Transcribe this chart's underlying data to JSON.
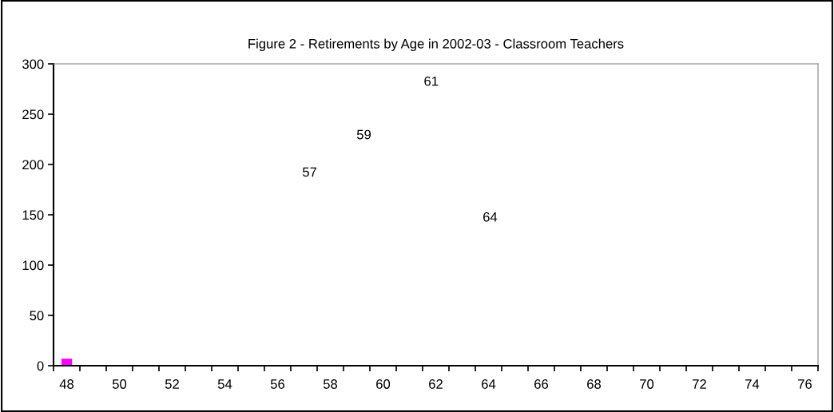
{
  "chart_data": {
    "type": "bar",
    "title": "Figure 2 - Retirements by Age in 2002-03 - Classroom Teachers",
    "x": [
      48
    ],
    "series": [
      {
        "color": "#ff00ff",
        "values": [
          7
        ]
      }
    ],
    "xlim": [
      47.5,
      76.5
    ],
    "xticks": [
      48,
      50,
      52,
      54,
      56,
      58,
      60,
      62,
      64,
      66,
      68,
      70,
      72,
      74,
      76,
      {
        "value": 47.5,
        "label": null
      },
      {
        "value": 48.5,
        "label": null
      },
      {
        "value": 49.5,
        "label": null
      },
      {
        "value": 50.5,
        "label": null
      },
      {
        "value": 51.5,
        "label": null
      },
      {
        "value": 52.5,
        "label": null
      },
      {
        "value": 53.5,
        "label": null
      },
      {
        "value": 54.5,
        "label": null
      },
      {
        "value": 55.5,
        "label": null
      },
      {
        "value": 56.5,
        "label": null
      },
      {
        "value": 57.5,
        "label": null
      },
      {
        "value": 58.5,
        "label": null
      },
      {
        "value": 59.5,
        "label": null
      },
      {
        "value": 60.5,
        "label": null
      },
      {
        "value": 61.5,
        "label": null
      },
      {
        "value": 62.5,
        "label": null
      },
      {
        "value": 63.5,
        "label": null
      },
      {
        "value": 64.5,
        "label": null
      },
      {
        "value": 65.5,
        "label": null
      },
      {
        "value": 66.5,
        "label": null
      },
      {
        "value": 67.5,
        "label": null
      },
      {
        "value": 68.5,
        "label": null
      },
      {
        "value": 69.5,
        "label": null
      },
      {
        "value": 70.5,
        "label": null
      },
      {
        "value": 71.5,
        "label": null
      },
      {
        "value": 72.5,
        "label": null
      },
      {
        "value": 73.5,
        "label": null
      },
      {
        "value": 74.5,
        "label": null
      },
      {
        "value": 75.5,
        "label": null
      },
      {
        "value": 76.5,
        "label": null
      }
    ],
    "ylim": [
      0,
      300
    ],
    "yticks": [
      0,
      50,
      100,
      150,
      200,
      250,
      300
    ],
    "annotations": [
      "57",
      "59",
      "61",
      "64"
    ]
  }
}
